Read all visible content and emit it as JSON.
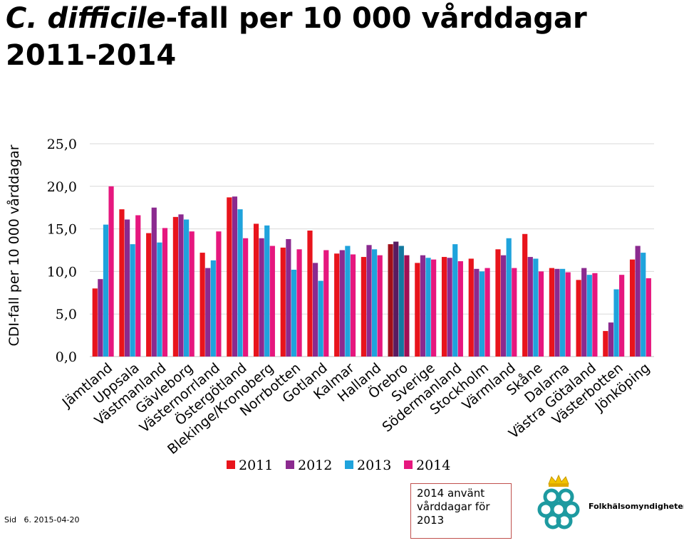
{
  "header": {
    "title_italic": "C. difficile",
    "title_rest": "-fall per 10 000 vårddagar",
    "title_line2": "2011-2014"
  },
  "footer": {
    "sid_label": "Sid",
    "page_and_date": "6. 2015-04-20"
  },
  "note": {
    "line1": "2014 använt",
    "line2": "vårddagar för",
    "line3": "2013",
    "border_color": "#c0504d"
  },
  "logo": {
    "name": "Folkhälsomyndigheten",
    "icon": "crown-pretzel-logo-icon"
  },
  "chart_data": {
    "type": "bar",
    "ylabel": "CDI-fall per 10 000 vårddagar",
    "ylim": [
      0,
      25
    ],
    "yticks": [
      "0,0",
      "5,0",
      "10,0",
      "15,0",
      "20,0",
      "25,0"
    ],
    "grid": true,
    "legend_position": "bottom",
    "categories": [
      "Jämtland",
      "Uppsala",
      "Västmanland",
      "Gävleborg",
      "Västernorrland",
      "Östergötland",
      "Blekinge/Kronoberg",
      "Norrbotten",
      "Gotland",
      "Kalmar",
      "Halland",
      "Örebro",
      "Sverige",
      "Södermanland",
      "Stockholm",
      "Värmland",
      "Skåne",
      "Dalarna",
      "Västra Götaland",
      "Västerbotten",
      "Jönköping"
    ],
    "series": [
      {
        "name": "2011",
        "color": "#e8141c",
        "values": [
          8.0,
          17.3,
          14.5,
          16.4,
          12.2,
          18.7,
          15.6,
          12.8,
          14.8,
          12.1,
          11.7,
          13.2,
          11.0,
          11.7,
          11.5,
          12.6,
          14.4,
          10.4,
          9.0,
          3.0,
          11.4
        ]
      },
      {
        "name": "2012",
        "color": "#8b2a8f",
        "values": [
          9.1,
          16.1,
          17.5,
          16.7,
          10.4,
          18.8,
          13.9,
          13.8,
          11.0,
          12.5,
          13.1,
          13.5,
          11.9,
          11.6,
          10.3,
          11.9,
          11.7,
          10.3,
          10.4,
          4.0,
          13.0
        ]
      },
      {
        "name": "2013",
        "color": "#1fa3dc",
        "values": [
          15.5,
          13.2,
          13.4,
          16.1,
          11.3,
          17.3,
          15.4,
          10.2,
          8.9,
          13.0,
          12.6,
          13.0,
          11.6,
          13.2,
          10.0,
          13.9,
          11.5,
          10.3,
          9.6,
          7.9,
          12.2
        ]
      },
      {
        "name": "2014",
        "color": "#e6177e",
        "values": [
          20.0,
          16.6,
          15.1,
          14.7,
          14.7,
          13.9,
          13.0,
          12.6,
          12.5,
          12.0,
          11.9,
          11.9,
          11.4,
          11.2,
          10.4,
          10.4,
          10.0,
          9.9,
          9.8,
          9.6,
          9.2
        ]
      }
    ],
    "highlight": {
      "category": "Örebro",
      "series_colors": [
        "#a0101a",
        "#5a1a60",
        "#13789f",
        "#a01055"
      ]
    }
  }
}
